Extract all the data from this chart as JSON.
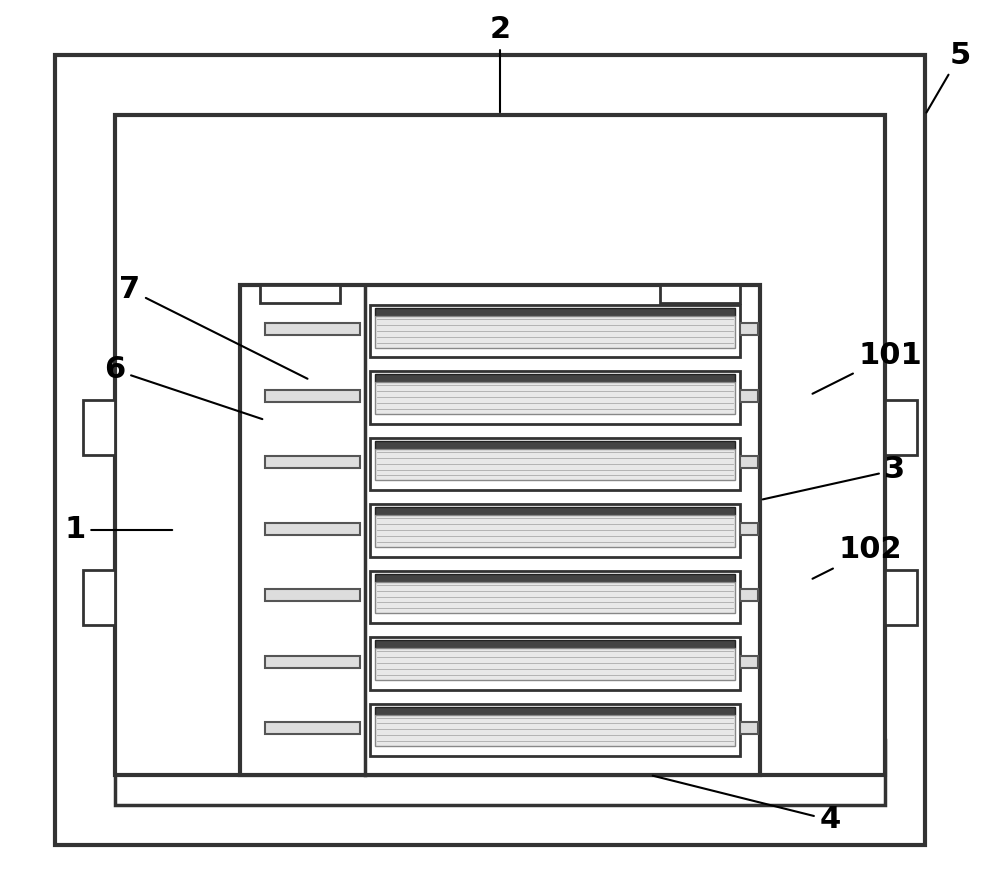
{
  "bg_color": "#ffffff",
  "line_color": "#000000",
  "fig_width": 10.0,
  "fig_height": 8.84,
  "num_sheets": 7
}
